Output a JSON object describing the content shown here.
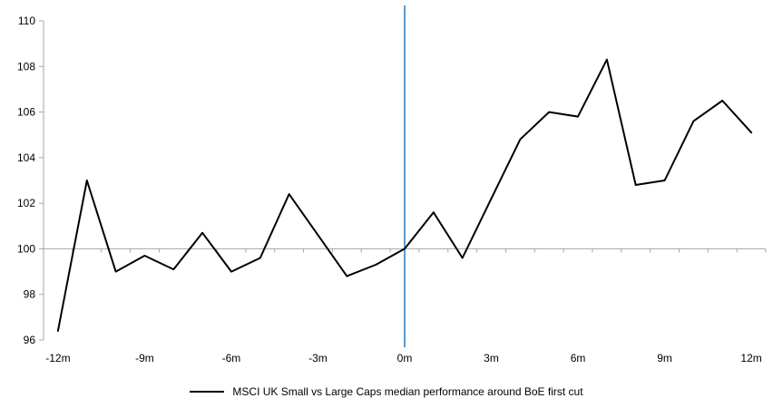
{
  "chart_data": {
    "type": "line",
    "months": [
      -12,
      -11,
      -10,
      -9,
      -8,
      -7,
      -6,
      -5,
      -4,
      -3,
      -2,
      -1,
      0,
      1,
      2,
      3,
      4,
      5,
      6,
      7,
      8,
      9,
      10,
      11,
      12
    ],
    "series": [
      {
        "name": "MSCI UK Small vs Large Caps median performance around BoE first cut",
        "color": "#000000",
        "values": [
          96.4,
          103.0,
          99.0,
          99.7,
          99.1,
          100.7,
          99.0,
          99.6,
          102.4,
          100.6,
          98.8,
          99.3,
          100.0,
          101.6,
          99.6,
          102.2,
          104.8,
          106.0,
          105.8,
          108.3,
          102.8,
          103.0,
          105.6,
          106.5,
          105.1
        ]
      }
    ],
    "ylim": [
      96,
      110
    ],
    "y_ticks": [
      96,
      98,
      100,
      102,
      104,
      106,
      108,
      110
    ],
    "x_tick_labels": [
      "-12m",
      "-9m",
      "-6m",
      "-3m",
      "0m",
      "3m",
      "6m",
      "9m",
      "12m"
    ],
    "x_tick_months": [
      -12,
      -9,
      -6,
      -3,
      0,
      3,
      6,
      9,
      12
    ],
    "baseline_value": 100,
    "event_line_month": 0,
    "event_line_color": "#5B9BD5",
    "axis_color": "#A6A6A6",
    "grid": "off",
    "legend_position": "bottom"
  }
}
